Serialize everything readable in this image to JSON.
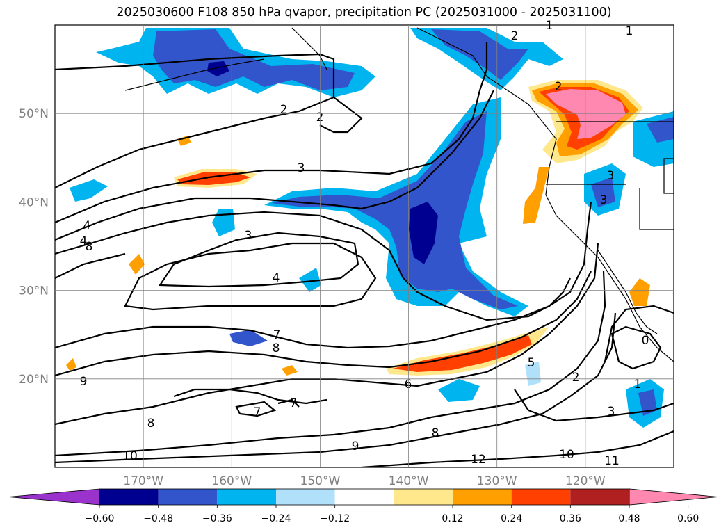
{
  "chart_data": {
    "type": "heatmap",
    "title": "2025030600 F108 850 hPa qvapor, precipitation PC (2025031000 - 2025031100)",
    "x_ticks": [
      "170°W",
      "160°W",
      "150°W",
      "140°W",
      "130°W",
      "120°W"
    ],
    "x_tick_values": [
      -170,
      -160,
      -150,
      -140,
      -130,
      -120
    ],
    "y_ticks": [
      "50°N",
      "40°N",
      "30°N",
      "20°N"
    ],
    "y_tick_values": [
      50,
      40,
      30,
      20
    ],
    "xlim": [
      -180,
      -110
    ],
    "ylim": [
      10,
      60
    ],
    "grid": true,
    "colorbar": {
      "orientation": "horizontal",
      "extend": "both",
      "tick_labels": [
        "−0.60",
        "−0.48",
        "−0.36",
        "−0.24",
        "−0.12",
        "0.12",
        "0.24",
        "0.36",
        "0.48",
        "0.60"
      ],
      "levels": [
        -0.6,
        -0.48,
        -0.36,
        -0.24,
        -0.12,
        0.12,
        0.24,
        0.36,
        0.48,
        0.6
      ],
      "colors": [
        "#9933cc",
        "#000090",
        "#3355cc",
        "#00b4f0",
        "#b0e0fa",
        "#ffffff",
        "#ffe88c",
        "#ffa000",
        "#ff4000",
        "#b02020",
        "#ff88b0"
      ]
    },
    "contour_labels": [
      "1",
      "1",
      "2",
      "2",
      "2",
      "2",
      "3",
      "3",
      "3",
      "4",
      "4",
      "3",
      "4",
      "8",
      "7",
      "8",
      "9",
      "8",
      "7",
      "7",
      "6",
      "5",
      "2",
      "1",
      "3",
      "0",
      "8",
      "9",
      "10",
      "12",
      "10",
      "11"
    ]
  }
}
